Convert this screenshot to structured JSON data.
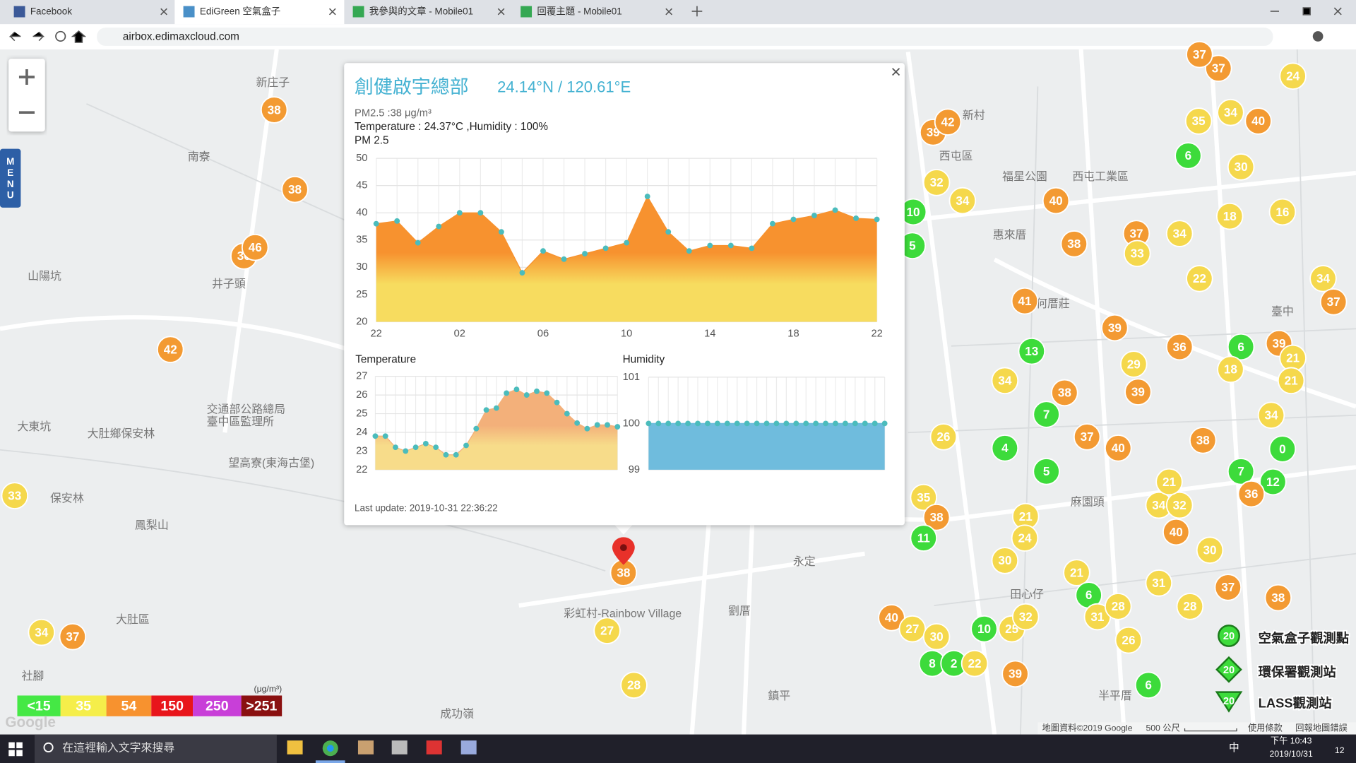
{
  "browser": {
    "tabs": [
      "Facebook",
      "EdiGreen 空氣盒子",
      "我參與的文章 - Mobile01",
      "回覆主題 - Mobile01"
    ],
    "url": "airbox.edimaxcloud.com"
  },
  "map": {
    "menu": "MENU",
    "google": "Google",
    "places": [
      "新庄子",
      "南寮",
      "山陽坑",
      "井子頭",
      "大東坑",
      "大肚鄉保安林",
      "保安林",
      "鳳梨山",
      "大肚區",
      "成功嶺",
      "劉厝",
      "永定",
      "西屯區",
      "福星公園",
      "西屯工業區",
      "惠來厝",
      "何厝莊",
      "臺中",
      "麻園頭",
      "田心仔",
      "半平厝",
      "鎮平",
      "交通部公路總局",
      "臺中區監理所",
      "望高寮(東海古堡)",
      "彩虹村-Rainbow Village",
      "社腳",
      "新村"
    ],
    "markers": [
      {
        "label": "38",
        "color": "#f39a32"
      },
      {
        "label": "38",
        "color": "#f39a32"
      },
      {
        "label": "36",
        "color": "#f39a32"
      },
      {
        "label": "46",
        "color": "#f39a32"
      },
      {
        "label": "42",
        "color": "#f39a32"
      },
      {
        "label": "33",
        "color": "#f5d84c"
      },
      {
        "label": "34",
        "color": "#f5d84c"
      },
      {
        "label": "37",
        "color": "#f39a32"
      },
      {
        "label": "27",
        "color": "#f5d84c"
      },
      {
        "label": "28",
        "color": "#f5d84c"
      },
      {
        "label": "38",
        "color": "#f39a32"
      },
      {
        "label": "39",
        "color": "#f39a32"
      },
      {
        "label": "42",
        "color": "#f39a32"
      },
      {
        "label": "32",
        "color": "#f5d84c"
      },
      {
        "label": "34",
        "color": "#f5d84c"
      },
      {
        "label": "10",
        "color": "#3ddb3b"
      },
      {
        "label": "5",
        "color": "#3ddb3b"
      },
      {
        "label": "40",
        "color": "#f39a32"
      },
      {
        "label": "38",
        "color": "#f39a32"
      },
      {
        "label": "37",
        "color": "#f39a32"
      },
      {
        "label": "34",
        "color": "#f5d84c"
      },
      {
        "label": "33",
        "color": "#f5d84c"
      },
      {
        "label": "41",
        "color": "#f39a32"
      },
      {
        "label": "39",
        "color": "#f39a32"
      },
      {
        "label": "13",
        "color": "#3ddb3b"
      },
      {
        "label": "34",
        "color": "#f5d84c"
      },
      {
        "label": "38",
        "color": "#f39a32"
      },
      {
        "label": "39",
        "color": "#f39a32"
      },
      {
        "label": "29",
        "color": "#f5d84c"
      },
      {
        "label": "36",
        "color": "#f39a32"
      },
      {
        "label": "7",
        "color": "#3ddb3b"
      },
      {
        "label": "37",
        "color": "#f39a32"
      },
      {
        "label": "40",
        "color": "#f39a32"
      },
      {
        "label": "4",
        "color": "#3ddb3b"
      },
      {
        "label": "5",
        "color": "#3ddb3b"
      },
      {
        "label": "38",
        "color": "#f39a32"
      },
      {
        "label": "35",
        "color": "#f5d84c"
      },
      {
        "label": "38",
        "color": "#f39a32"
      },
      {
        "label": "11",
        "color": "#3ddb3b"
      },
      {
        "label": "21",
        "color": "#f5d84c"
      },
      {
        "label": "24",
        "color": "#f5d84c"
      },
      {
        "label": "30",
        "color": "#f5d84c"
      },
      {
        "label": "21",
        "color": "#f5d84c"
      },
      {
        "label": "6",
        "color": "#3ddb3b"
      },
      {
        "label": "31",
        "color": "#f5d84c"
      },
      {
        "label": "37",
        "color": "#f39a32"
      },
      {
        "label": "38",
        "color": "#f39a32"
      },
      {
        "label": "40",
        "color": "#f39a32"
      },
      {
        "label": "27",
        "color": "#f5d84c"
      },
      {
        "label": "30",
        "color": "#f5d84c"
      },
      {
        "label": "10",
        "color": "#3ddb3b"
      },
      {
        "label": "25",
        "color": "#f5d84c"
      },
      {
        "label": "32",
        "color": "#f5d84c"
      },
      {
        "label": "8",
        "color": "#3ddb3b"
      },
      {
        "label": "2",
        "color": "#3ddb3b"
      },
      {
        "label": "22",
        "color": "#f5d84c"
      },
      {
        "label": "39",
        "color": "#f39a32"
      },
      {
        "label": "31",
        "color": "#f5d84c"
      },
      {
        "label": "28",
        "color": "#f5d84c"
      },
      {
        "label": "26",
        "color": "#f5d84c"
      },
      {
        "label": "28",
        "color": "#f5d84c"
      },
      {
        "label": "6",
        "color": "#3ddb3b"
      },
      {
        "label": "40",
        "color": "#f39a32"
      },
      {
        "label": "30",
        "color": "#f5d84c"
      },
      {
        "label": "34",
        "color": "#f5d84c"
      },
      {
        "label": "32",
        "color": "#f5d84c"
      },
      {
        "label": "21",
        "color": "#f5d84c"
      },
      {
        "label": "7",
        "color": "#3ddb3b"
      },
      {
        "label": "12",
        "color": "#3ddb3b"
      },
      {
        "label": "36",
        "color": "#f39a32"
      },
      {
        "label": "0",
        "color": "#3ddb3b"
      },
      {
        "label": "34",
        "color": "#f5d84c"
      },
      {
        "label": "6",
        "color": "#3ddb3b"
      },
      {
        "label": "18",
        "color": "#f5d84c"
      },
      {
        "label": "39",
        "color": "#f39a32"
      },
      {
        "label": "21",
        "color": "#f5d84c"
      },
      {
        "label": "21",
        "color": "#f5d84c"
      },
      {
        "label": "35",
        "color": "#f5d84c"
      },
      {
        "label": "34",
        "color": "#f5d84c"
      },
      {
        "label": "40",
        "color": "#f39a32"
      },
      {
        "label": "6",
        "color": "#3ddb3b"
      },
      {
        "label": "30",
        "color": "#f5d84c"
      },
      {
        "label": "18",
        "color": "#f5d84c"
      },
      {
        "label": "16",
        "color": "#f5d84c"
      },
      {
        "label": "22",
        "color": "#f5d84c"
      },
      {
        "label": "34",
        "color": "#f5d84c"
      },
      {
        "label": "37",
        "color": "#f39a32"
      },
      {
        "label": "24",
        "color": "#f5d84c"
      },
      {
        "label": "37",
        "color": "#f39a32"
      },
      {
        "label": "37",
        "color": "#f39a32"
      },
      {
        "label": "26",
        "color": "#f5d84c"
      }
    ],
    "attribution": [
      "地圖資料©2019 Google",
      "500 公尺",
      "使用條款",
      "回報地圖錯誤"
    ]
  },
  "popup": {
    "title": "創健啟宇總部",
    "coords": "24.14°N / 120.61°E",
    "pm25": "PM2.5 :38 μg/m³",
    "conditions": "Temperature : 24.37°C ,Humidity : 100%",
    "updated": "Last update: 2019-10-31 22:36:22",
    "charts": [
      {
        "type": "area",
        "title": "PM 2.5",
        "categories": [
          "22",
          null,
          null,
          null,
          "02",
          null,
          null,
          null,
          "06",
          null,
          null,
          null,
          "10",
          null,
          null,
          null,
          "14",
          null,
          null,
          null,
          "18",
          null,
          null,
          null,
          "22"
        ],
        "values": [
          38,
          38.5,
          34.5,
          37.5,
          40,
          40,
          36.5,
          29,
          33,
          31.5,
          32.5,
          33.5,
          34.5,
          43,
          36.5,
          33,
          34,
          34,
          33.5,
          38,
          38.8,
          39.5,
          40.5,
          39,
          38.8
        ],
        "ylim": [
          20,
          50
        ],
        "yticks": [
          20,
          25,
          30,
          35,
          40,
          45,
          50
        ],
        "color": "#4bbcbc",
        "fill": [
          "#f7922f",
          "#f7dc5f"
        ]
      },
      {
        "type": "area",
        "title": "Temperature",
        "values": [
          23.8,
          23.8,
          23.2,
          23.0,
          23.2,
          23.4,
          23.2,
          22.8,
          22.8,
          23.3,
          24.2,
          25.2,
          25.3,
          26.1,
          26.3,
          26.0,
          26.2,
          26.1,
          25.6,
          25.0,
          24.5,
          24.2,
          24.4,
          24.4,
          24.3
        ],
        "ylim": [
          22,
          27
        ],
        "yticks": [
          22,
          23,
          24,
          25,
          26,
          27
        ],
        "color": "#4bbcbc",
        "fill": [
          "#f3b07a",
          "#f7dc8a"
        ]
      },
      {
        "type": "area",
        "title": "Humidity",
        "values": [
          100,
          100,
          100,
          100,
          100,
          100,
          100,
          100,
          100,
          100,
          100,
          100,
          100,
          100,
          100,
          100,
          100,
          100,
          100,
          100,
          100,
          100,
          100,
          100,
          100
        ],
        "ylim": [
          99,
          101
        ],
        "yticks": [
          99,
          100,
          101
        ],
        "color": "#4bbcbc",
        "fill": [
          "#6fbcdd",
          "#6fbcdd"
        ]
      }
    ]
  },
  "legend": {
    "unit": "(μg/m³)",
    "levels": [
      {
        "label": "<15",
        "color": "#45e845"
      },
      {
        "label": "35",
        "color": "#f5ee4a"
      },
      {
        "label": "54",
        "color": "#f7922f"
      },
      {
        "label": "150",
        "color": "#e8151b"
      },
      {
        "label": "250",
        "color": "#c83fd8"
      },
      {
        "label": ">251",
        "color": "#8a1010"
      }
    ]
  },
  "station_legend": [
    {
      "label": "空氣盒子觀測點",
      "count": "20"
    },
    {
      "label": "環保署觀測站",
      "count": "20"
    },
    {
      "label": "LASS觀測站",
      "count": "20"
    }
  ],
  "taskbar": {
    "search": "在這裡輸入文字來搜尋",
    "time": "下午 10:43",
    "date": "2019/10/31",
    "ime": "中",
    "notifications": "12"
  }
}
